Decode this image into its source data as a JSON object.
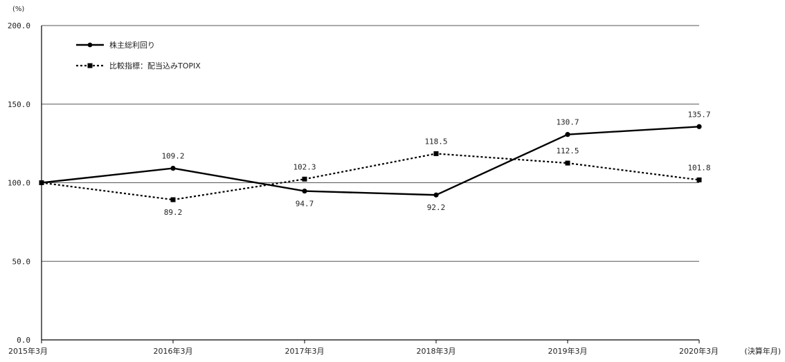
{
  "chart_data": {
    "type": "line",
    "y_unit": "(%)",
    "x_unit": "(決算年月)",
    "categories": [
      "2015年3月",
      "2016年3月",
      "2017年3月",
      "2018年3月",
      "2019年3月",
      "2020年3月"
    ],
    "ylim": [
      0,
      200
    ],
    "yticks": [
      "0.0",
      "50.0",
      "100.0",
      "150.0",
      "200.0"
    ],
    "grid": true,
    "legend_position": "top-left",
    "series": [
      {
        "name": "株主総利回り",
        "values": [
          100.0,
          109.2,
          94.7,
          92.2,
          130.7,
          135.7
        ],
        "labels": [
          "",
          "109.2",
          "94.7",
          "92.2",
          "130.7",
          "135.7"
        ],
        "style": "solid",
        "marker": "circle",
        "color": "#000000"
      },
      {
        "name": "比較指標：配当込みTOPIX",
        "values": [
          100.0,
          89.2,
          102.3,
          118.5,
          112.5,
          101.8
        ],
        "labels": [
          "",
          "89.2",
          "102.3",
          "118.5",
          "112.5",
          "101.8"
        ],
        "style": "dotted",
        "marker": "square",
        "color": "#000000"
      }
    ]
  }
}
